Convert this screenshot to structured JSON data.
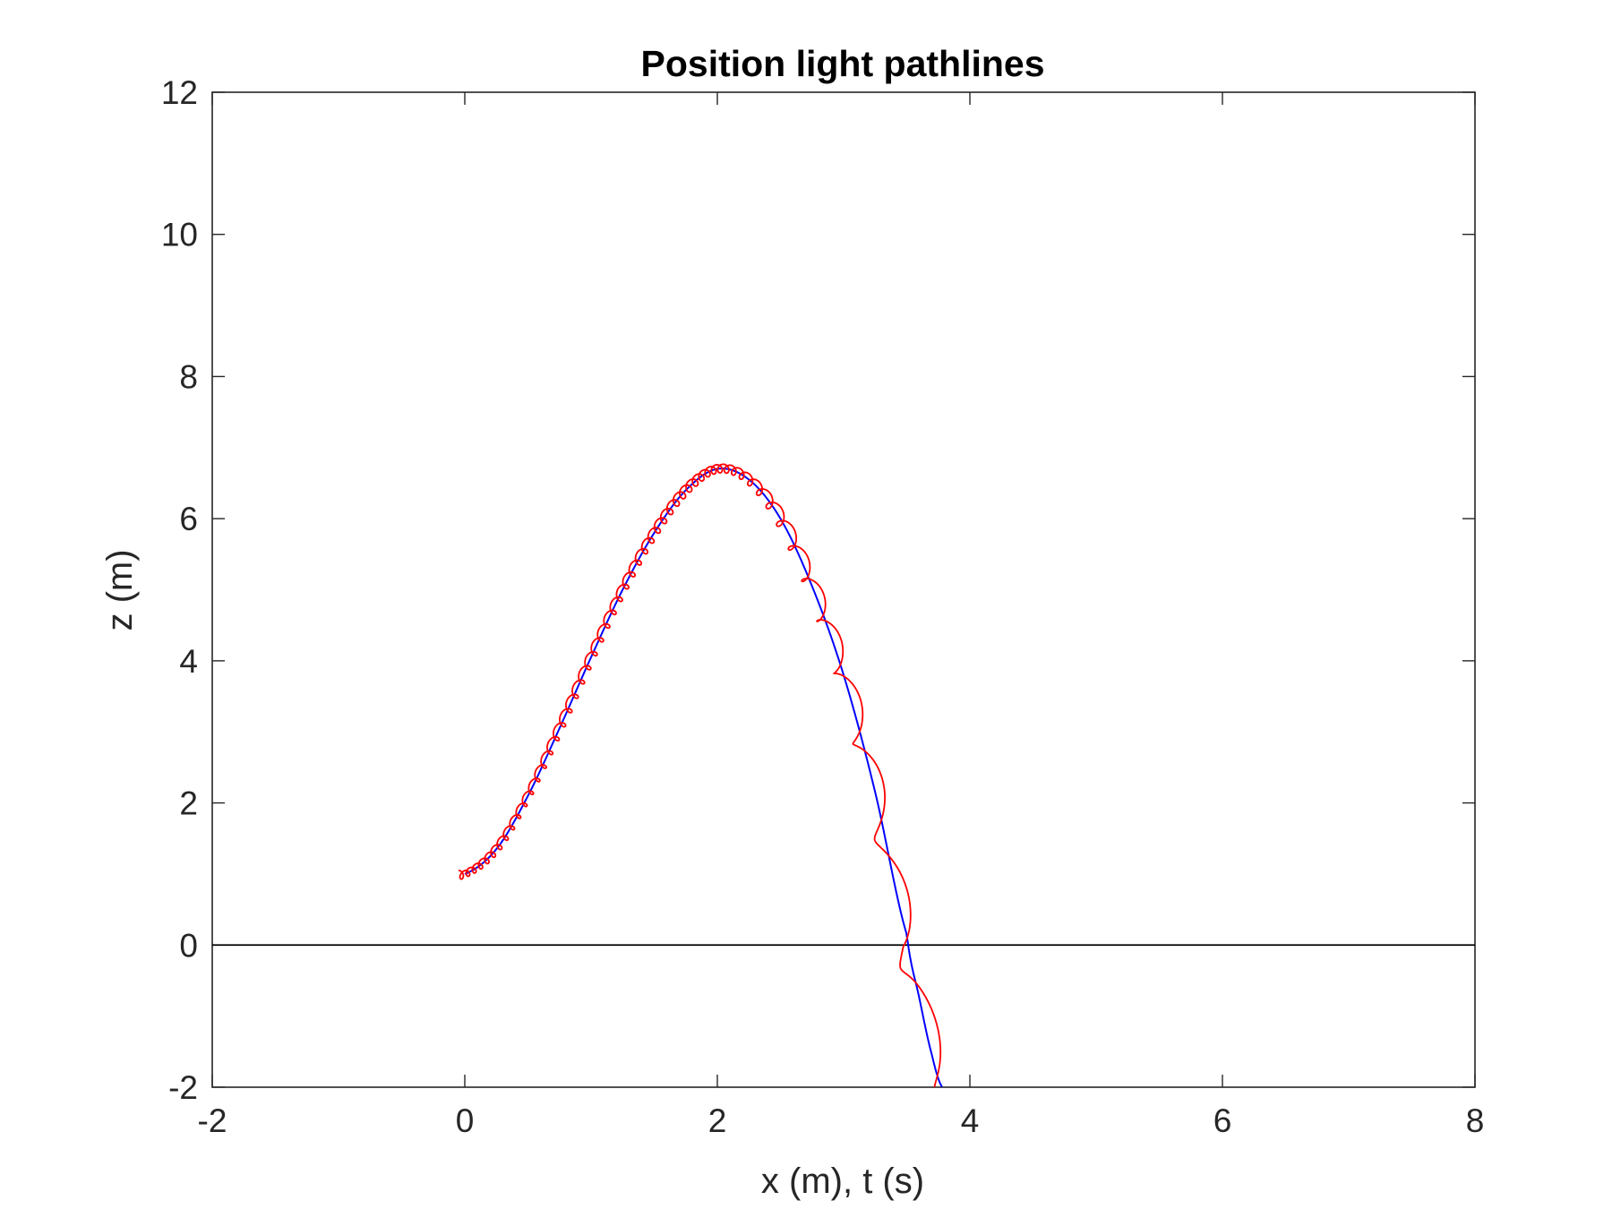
{
  "chart_data": {
    "type": "line",
    "title": "Position light pathlines",
    "xlabel": "x (m), t (s)",
    "ylabel": "z (m)",
    "xlim": [
      -2,
      8
    ],
    "ylim": [
      -2,
      12
    ],
    "x_ticks": [
      -2,
      0,
      2,
      4,
      6,
      8
    ],
    "y_ticks": [
      -2,
      0,
      2,
      4,
      6,
      8,
      10,
      12
    ],
    "x_tick_labels": [
      "-2",
      "0",
      "2",
      "4",
      "6",
      "8"
    ],
    "y_tick_labels": [
      "-2",
      "0",
      "2",
      "4",
      "6",
      "8",
      "10",
      "12"
    ],
    "grid": false,
    "reference_line": {
      "y": 0,
      "color": "#000000"
    },
    "series": [
      {
        "color": "#0000ff",
        "style": "smooth",
        "x": [
          0.0,
          0.25,
          0.5,
          0.75,
          1.0,
          1.25,
          1.5,
          1.75,
          2.0,
          2.25,
          2.5,
          2.75,
          3.0,
          3.25,
          3.5,
          3.6,
          3.7,
          3.78
        ],
        "y": [
          1.0,
          1.35,
          2.1,
          3.05,
          4.05,
          5.0,
          5.8,
          6.4,
          6.7,
          6.55,
          6.0,
          5.05,
          3.8,
          2.15,
          0.15,
          -0.75,
          -1.55,
          -2.0
        ]
      },
      {
        "color": "#ff0000",
        "style": "oscillating",
        "description_free": true,
        "x": [
          -0.05,
          0.0,
          0.25,
          0.5,
          0.75,
          1.0,
          1.25,
          1.5,
          1.75,
          2.0,
          2.25,
          2.5,
          2.75,
          3.0,
          3.25,
          3.5,
          3.6,
          3.7,
          3.8
        ],
        "y": [
          1.0,
          1.0,
          1.35,
          2.1,
          3.05,
          4.05,
          5.0,
          5.8,
          6.4,
          6.7,
          6.55,
          6.0,
          5.05,
          3.8,
          2.15,
          0.15,
          -0.75,
          -1.55,
          -2.1
        ],
        "oscillation_amplitude": [
          0.05,
          0.05,
          0.06,
          0.06,
          0.07,
          0.07,
          0.07,
          0.07,
          0.07,
          0.06,
          0.07,
          0.1,
          0.12,
          0.14,
          0.16,
          0.18,
          0.18,
          0.18,
          0.1
        ],
        "oscillation_period_t": [
          0.05,
          0.05,
          0.05,
          0.05,
          0.05,
          0.05,
          0.05,
          0.05,
          0.05,
          0.05,
          0.07,
          0.09,
          0.12,
          0.15,
          0.18,
          0.22,
          0.24,
          0.26,
          0.28
        ]
      }
    ]
  }
}
